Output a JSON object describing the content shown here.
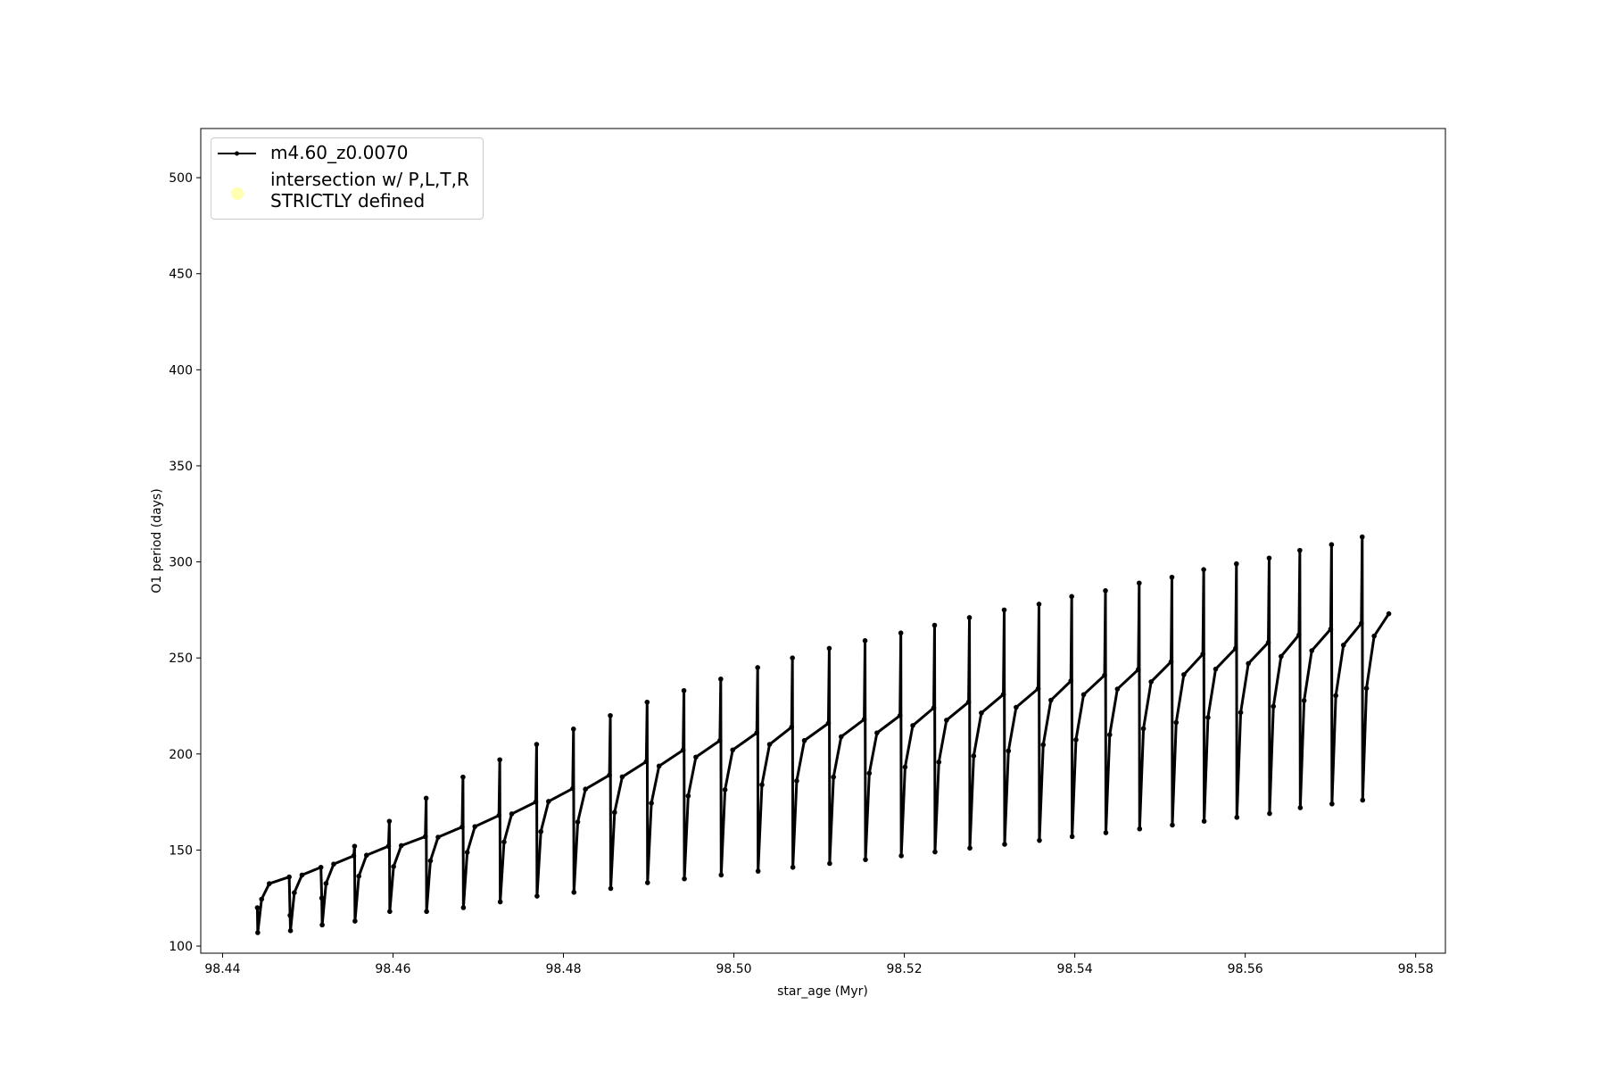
{
  "chart_data": {
    "type": "line",
    "xlabel": "star_age (Myr)",
    "ylabel": "O1 period (days)",
    "xlim": [
      98.43744,
      98.58349
    ],
    "xticks": [
      98.44,
      98.46,
      98.48,
      {
        "value": 98.5,
        "label": "98.50"
      },
      98.52,
      98.54,
      98.56,
      98.58
    ],
    "ylim": [
      96.3,
      525.6
    ],
    "yticks": [
      100,
      150,
      200,
      250,
      300,
      350,
      400,
      450,
      500
    ],
    "grid": false,
    "legend": "upper left",
    "series": [
      {
        "name": "m4.60_z0.0070",
        "color": "#000000",
        "x": [
          98.44408,
          98.44413,
          98.44458,
          98.44548,
          98.44782,
          98.44792,
          98.44797,
          98.44842,
          98.44932,
          98.45154,
          98.45164,
          98.45169,
          98.45214,
          98.45304,
          98.45539,
          98.45549,
          98.45554,
          98.45599,
          98.45689,
          98.45947,
          98.45957,
          98.45962,
          98.46007,
          98.46097,
          98.46379,
          98.46389,
          98.46394,
          98.46439,
          98.46529,
          98.46811,
          98.46821,
          98.46826,
          98.46871,
          98.46961,
          98.47243,
          98.47253,
          98.47258,
          98.47303,
          98.47393,
          98.47675,
          98.47685,
          98.4769,
          98.47735,
          98.47825,
          98.48108,
          98.48118,
          98.48123,
          98.48168,
          98.48258,
          98.4854,
          98.4855,
          98.48555,
          98.486,
          98.4869,
          98.48972,
          98.48982,
          98.48987,
          98.49032,
          98.49122,
          98.49404,
          98.49414,
          98.49419,
          98.49464,
          98.49554,
          98.49836,
          98.49846,
          98.49851,
          98.49896,
          98.49986,
          98.50269,
          98.50279,
          98.50284,
          98.50329,
          98.50419,
          98.50677,
          98.50687,
          98.50692,
          98.50737,
          98.50827,
          98.51109,
          98.51119,
          98.51124,
          98.51169,
          98.51259,
          98.51529,
          98.51539,
          98.51544,
          98.51589,
          98.51679,
          98.51949,
          98.51959,
          98.51964,
          98.52009,
          98.52099,
          98.52345,
          98.52355,
          98.5236,
          98.52405,
          98.52495,
          98.52754,
          98.52764,
          98.52769,
          98.52814,
          98.52904,
          98.53162,
          98.53172,
          98.53177,
          98.53222,
          98.53312,
          98.5357,
          98.5358,
          98.53585,
          98.5363,
          98.5372,
          98.53954,
          98.53964,
          98.53969,
          98.54014,
          98.54104,
          98.5435,
          98.5436,
          98.54365,
          98.5441,
          98.545,
          98.54746,
          98.54756,
          98.54761,
          98.54806,
          98.54896,
          98.5513,
          98.5514,
          98.55145,
          98.5519,
          98.5528,
          98.55503,
          98.55513,
          98.55518,
          98.55563,
          98.55653,
          98.55887,
          98.55897,
          98.55902,
          98.55947,
          98.56037,
          98.56271,
          98.56281,
          98.56286,
          98.56331,
          98.56421,
          98.56631,
          98.56641,
          98.56646,
          98.56691,
          98.56781,
          98.57003,
          98.57013,
          98.57018,
          98.57063,
          98.57153,
          98.57363,
          98.57373,
          98.57378,
          98.57423,
          98.57513,
          98.57685
        ],
        "values": [
          120,
          107,
          124.4,
          132.5,
          136,
          116,
          108,
          127.8,
          137,
          141,
          125,
          111,
          132.6,
          142.7,
          147,
          152,
          113,
          136.4,
          147.3,
          152,
          165,
          118,
          141.4,
          152.3,
          157,
          177,
          118,
          144.4,
          156.7,
          162,
          188,
          120,
          148.8,
          162.2,
          168,
          197,
          123,
          154.2,
          168.8,
          175,
          205,
          126,
          159.6,
          175.3,
          182,
          213,
          128,
          164.6,
          181.7,
          189,
          220,
          130,
          169.6,
          188.1,
          196,
          227,
          133,
          174.4,
          193.7,
          202,
          233,
          135,
          178.2,
          198.4,
          207,
          239,
          137,
          181.4,
          202.1,
          211,
          245,
          139,
          184,
          205,
          214,
          250,
          141,
          186,
          207,
          216,
          255,
          143,
          188,
          209,
          218,
          259,
          145,
          190,
          211,
          220,
          263,
          147,
          193.2,
          214.8,
          224,
          267,
          149,
          195.8,
          217.6,
          227,
          271,
          151,
          199,
          221.4,
          231,
          275,
          153,
          201.6,
          224.3,
          234,
          278,
          155,
          204.8,
          228,
          238,
          282,
          157,
          207.4,
          230.9,
          241,
          285,
          159,
          210,
          233.8,
          244,
          289,
          161,
          213.2,
          237.6,
          248,
          292,
          163,
          216.4,
          241.3,
          252,
          296,
          165,
          219,
          244.2,
          255,
          299,
          167,
          221.6,
          247.1,
          258,
          302,
          169,
          224.8,
          250.8,
          262,
          306,
          172,
          227.8,
          253.8,
          265,
          309,
          174,
          230.4,
          256.7,
          268,
          313,
          176,
          234.2,
          261.4,
          273
        ]
      },
      {
        "name": "intersection w/ P,L,T,R\nSTRICTLY defined",
        "color": "#ffffb0",
        "x": [],
        "values": []
      }
    ]
  }
}
